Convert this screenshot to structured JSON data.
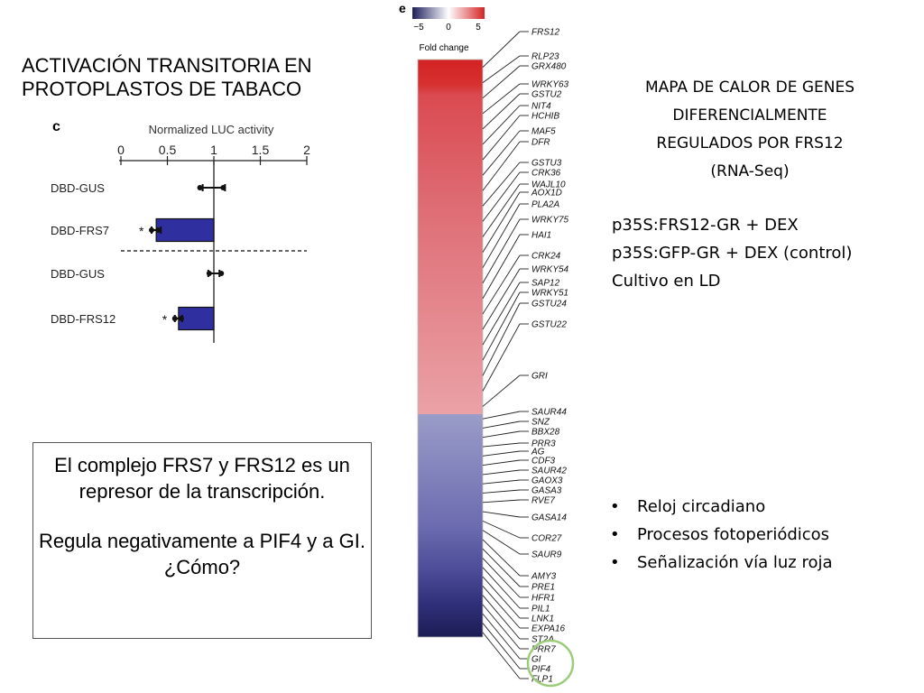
{
  "slide": {
    "left_title_lines": [
      "ACTIVACIÓN TRANSITORIA EN",
      "PROTOPLASTOS DE TABACO"
    ],
    "right_title_lines": [
      "MAPA DE CALOR DE GENES",
      "DIFERENCIALMENTE",
      "REGULADOS POR FRS12",
      "(RNA-Seq)"
    ],
    "conditions": [
      "p35S:FRS12-GR + DEX",
      "p35S:GFP-GR + DEX (control)",
      "Cultivo en LD"
    ],
    "bullets": [
      "Reloj circadiano",
      "Procesos fotoperiódicos",
      "Señalización vía luz roja"
    ],
    "conclusion": {
      "paragraph1": "El complejo FRS7 y FRS12 es un represor de la transcripción.",
      "paragraph2": "Regula negativamente a PIF4 y a GI. ¿Cómo?"
    }
  },
  "chart_data": [
    {
      "type": "bar",
      "orientation": "horizontal",
      "panel_label": "c",
      "title": "Normalized LUC activity",
      "xlim": [
        0,
        2
      ],
      "ticks": [
        "0",
        "0.5",
        "1",
        "1.5",
        "2"
      ],
      "tick_values": [
        0,
        0.5,
        1,
        1.5,
        2
      ],
      "reference_line": 1,
      "categories": [
        "DBD-GUS",
        "DBD-FRS7",
        "DBD-GUS",
        "DBD-FRS12"
      ],
      "values": [
        1.0,
        0.38,
        1.0,
        0.62
      ],
      "errors": [
        0.12,
        0.05,
        0.06,
        0.04
      ],
      "points": [
        [
          0.85,
          1.1
        ],
        [
          0.33,
          0.4
        ],
        [
          0.95,
          1.08
        ],
        [
          0.58,
          0.65
        ]
      ],
      "significance": [
        "",
        "*",
        "",
        "*"
      ],
      "group_separator_after": 1,
      "colors": {
        "control": "#ffffff",
        "treatment": "#2f2fa0"
      }
    },
    {
      "type": "heatmap",
      "panel_label": "e",
      "legend": {
        "label": "Fold change",
        "range": [
          -5,
          5
        ],
        "ticks": [
          "−5",
          "0",
          "5"
        ]
      },
      "colors": {
        "low": "#1f1f5c",
        "mid": "#ffffff",
        "high": "#d42424"
      },
      "genes_up": [
        "FRS12",
        "RLP23",
        "GRX480",
        "WRKY63",
        "GSTU2",
        "NIT4",
        "HCHIB",
        "MAF5",
        "DFR",
        "GSTU3",
        "CRK36",
        "WAJL10",
        "AOX1D",
        "PLA2A",
        "WRKY75",
        "HAI1",
        "CRK24",
        "WRKY54",
        "SAP12",
        "WRKY51",
        "GSTU24",
        "GSTU22",
        "GRI"
      ],
      "genes_down": [
        "SAUR44",
        "SNZ",
        "BBX28",
        "PRR3",
        "AG",
        "CDF3",
        "SAUR42",
        "GAOX3",
        "GASA3",
        "RVE7",
        "GASA14",
        "COR27",
        "SAUR9",
        "AMY3",
        "PRE1",
        "HFR1",
        "PIL1",
        "LNK1",
        "EXPA16",
        "ST2A",
        "PRR7",
        "GI",
        "PIF4",
        "FLP1"
      ],
      "highlighted_genes": [
        "GI",
        "PIF4"
      ]
    }
  ]
}
